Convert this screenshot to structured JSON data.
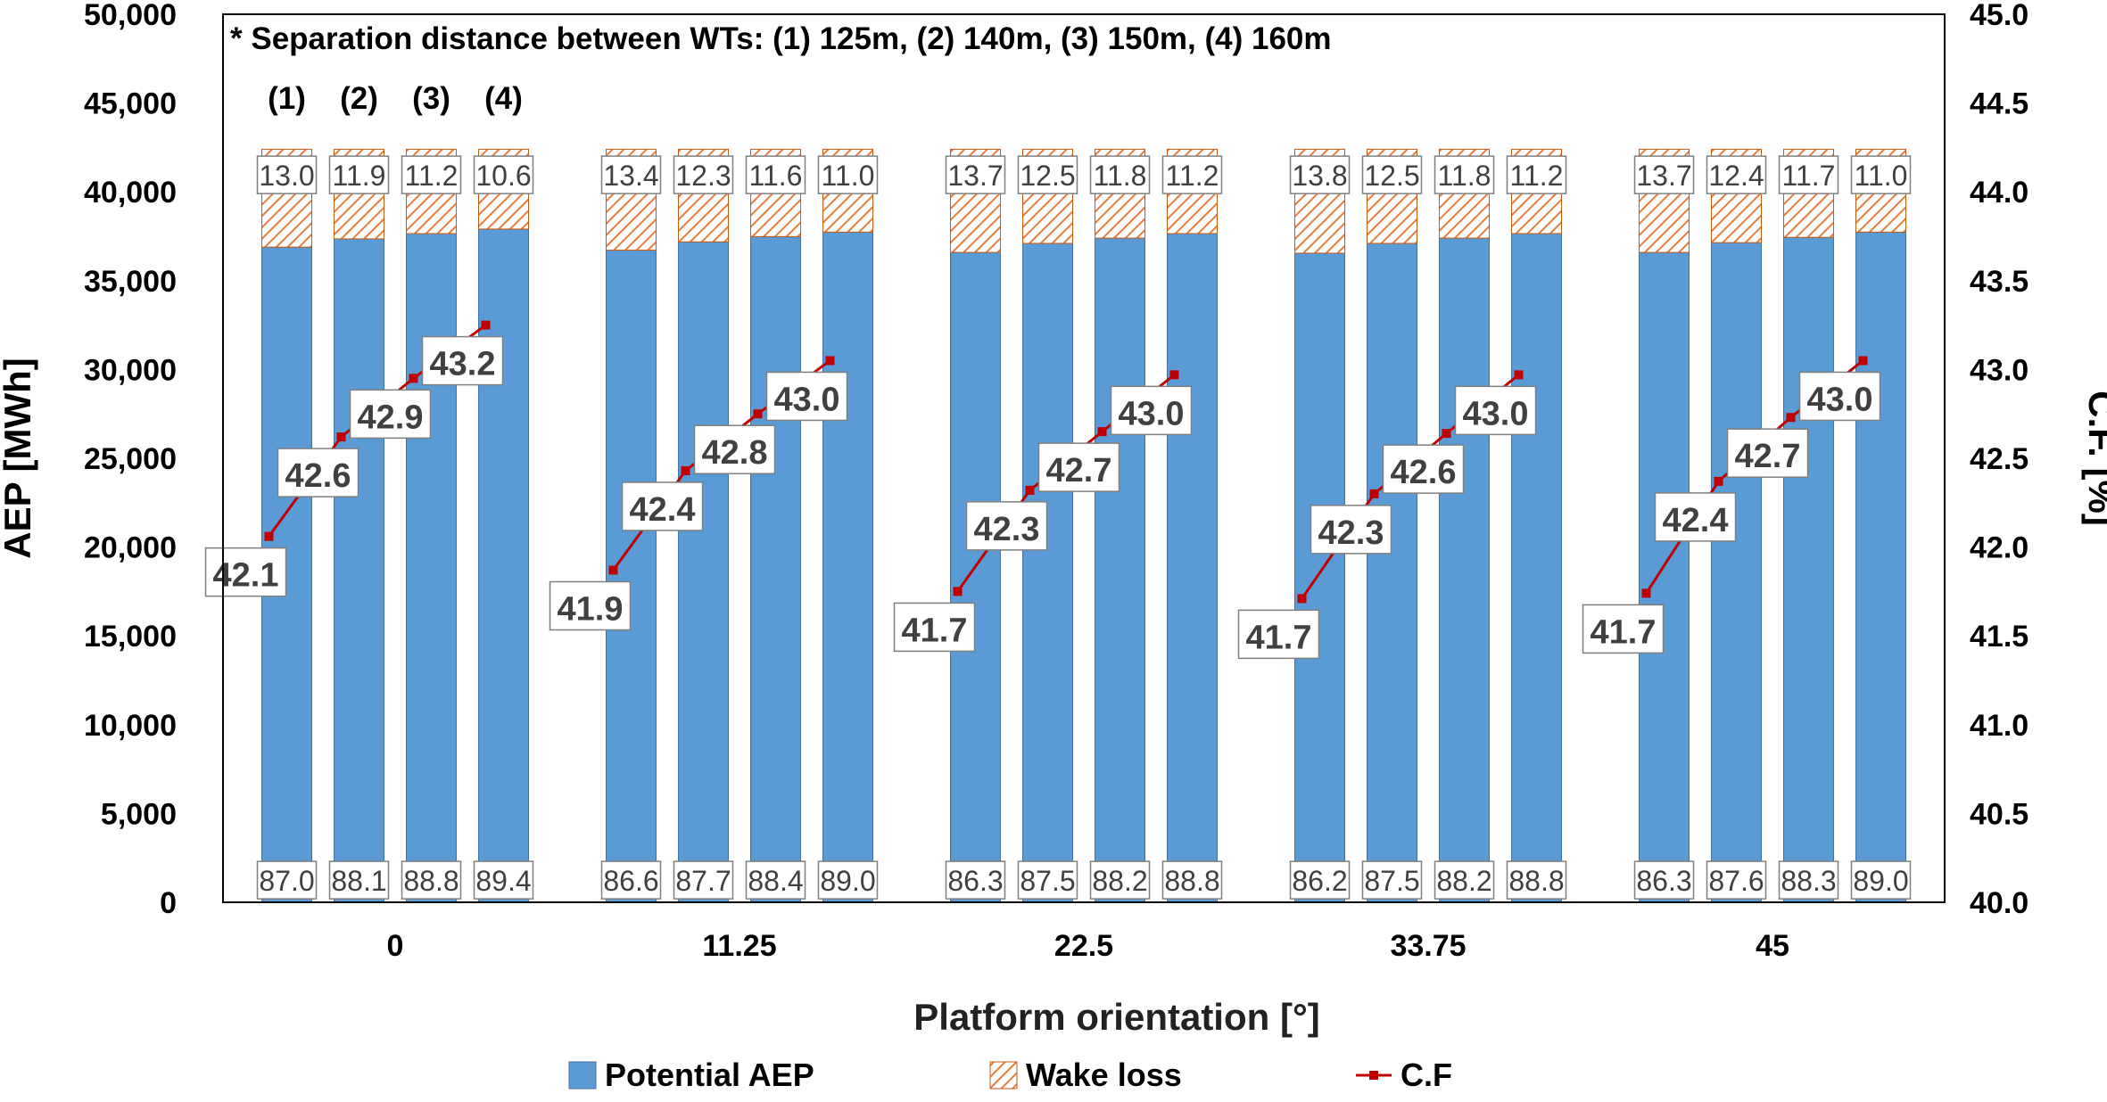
{
  "chart_data": {
    "type": "bar",
    "stacked": true,
    "annotation": "* Separation distance between WTs: (1) 125m, (2) 140m, (3) 150m, (4) 160m",
    "group_labels": [
      "(1)",
      "(2)",
      "(3)",
      "(4)"
    ],
    "categories": [
      "0",
      "11.25",
      "22.5",
      "33.75",
      "45"
    ],
    "xlabel": "Platform orientation [°]",
    "ylabel": "AEP [MWh]",
    "y2label": "C.F. [%]",
    "ylim": [
      0,
      50000
    ],
    "y2lim": [
      40.0,
      45.0
    ],
    "yticks": [
      "0",
      "5,000",
      "10,000",
      "15,000",
      "20,000",
      "25,000",
      "30,000",
      "35,000",
      "40,000",
      "45,000",
      "50,000"
    ],
    "y2ticks": [
      "40.0",
      "40.5",
      "41.0",
      "41.5",
      "42.0",
      "42.5",
      "43.0",
      "43.5",
      "44.0",
      "44.5",
      "45.0"
    ],
    "total_aep": 42400,
    "series": [
      {
        "name": "Potential AEP",
        "kind": "bar",
        "color": "#5b9bd5",
        "labels": [
          [
            "87.0",
            "88.1",
            "88.8",
            "89.4"
          ],
          [
            "86.6",
            "87.7",
            "88.4",
            "89.0"
          ],
          [
            "86.3",
            "87.5",
            "88.2",
            "88.8"
          ],
          [
            "86.2",
            "87.5",
            "88.2",
            "88.8"
          ],
          [
            "86.3",
            "87.6",
            "88.3",
            "89.0"
          ]
        ]
      },
      {
        "name": "Wake loss",
        "kind": "bar-hatched",
        "color": "#f4b183",
        "labels": [
          [
            "13.0",
            "11.9",
            "11.2",
            "10.6"
          ],
          [
            "13.4",
            "12.3",
            "11.6",
            "11.0"
          ],
          [
            "13.7",
            "12.5",
            "11.8",
            "11.2"
          ],
          [
            "13.8",
            "12.5",
            "11.8",
            "11.2"
          ],
          [
            "13.7",
            "12.4",
            "11.7",
            "11.0"
          ]
        ]
      },
      {
        "name": "C.F",
        "kind": "line",
        "color": "#c00000",
        "values": [
          [
            42.06,
            42.62,
            42.95,
            43.25
          ],
          [
            41.87,
            42.43,
            42.75,
            43.05
          ],
          [
            41.75,
            42.32,
            42.65,
            42.97
          ],
          [
            41.71,
            42.3,
            42.64,
            42.97
          ],
          [
            41.74,
            42.37,
            42.73,
            43.05
          ]
        ],
        "labels": [
          [
            "42.1",
            "42.6",
            "42.9",
            "43.2"
          ],
          [
            "41.9",
            "42.4",
            "42.8",
            "43.0"
          ],
          [
            "41.7",
            "42.3",
            "42.7",
            "43.0"
          ],
          [
            "41.7",
            "42.3",
            "42.6",
            "43.0"
          ],
          [
            "41.7",
            "42.4",
            "42.7",
            "43.0"
          ]
        ]
      }
    ],
    "legend": [
      "Potential AEP",
      "Wake loss",
      "C.F"
    ],
    "legend_position": "bottom",
    "grid": false
  }
}
